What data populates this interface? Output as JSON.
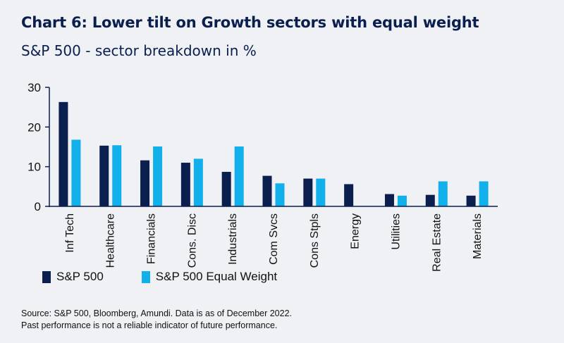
{
  "title": "Chart 6: Lower tilt on Growth sectors with equal weight",
  "subtitle": "S&P 500 - sector breakdown in %",
  "footer": {
    "line1": "Source: S&P 500, Bloomberg, Amundi. Data is as of December 2022.",
    "line2": "Past performance is not a reliable indicator of future performance."
  },
  "colors": {
    "background": "#eff1f5",
    "series1": "#0a1f4e",
    "series2": "#12b0ea",
    "axis": "#0a1f4e"
  },
  "chart_data": {
    "type": "bar",
    "categories": [
      "Inf Tech",
      "Healthcare",
      "Financials",
      "Cons. Disc",
      "Industrials",
      "Com Svcs",
      "Cons Stpls",
      "Energy",
      "Utilities",
      "Real Estate",
      "Materials"
    ],
    "series": [
      {
        "name": "S&P 500",
        "values": [
          26.3,
          15.3,
          11.6,
          11.0,
          8.7,
          7.7,
          7.0,
          5.6,
          3.1,
          2.9,
          2.7
        ]
      },
      {
        "name": "S&P 500 Equal Weight",
        "values": [
          16.8,
          15.4,
          15.1,
          12.0,
          15.1,
          5.8,
          7.0,
          0,
          2.7,
          6.3,
          6.3
        ]
      }
    ],
    "ylim": [
      0,
      30
    ],
    "yticks": [
      0,
      10,
      20,
      30
    ],
    "xlabel": "",
    "ylabel": "",
    "legend_position": "bottom-left",
    "grid": false
  }
}
